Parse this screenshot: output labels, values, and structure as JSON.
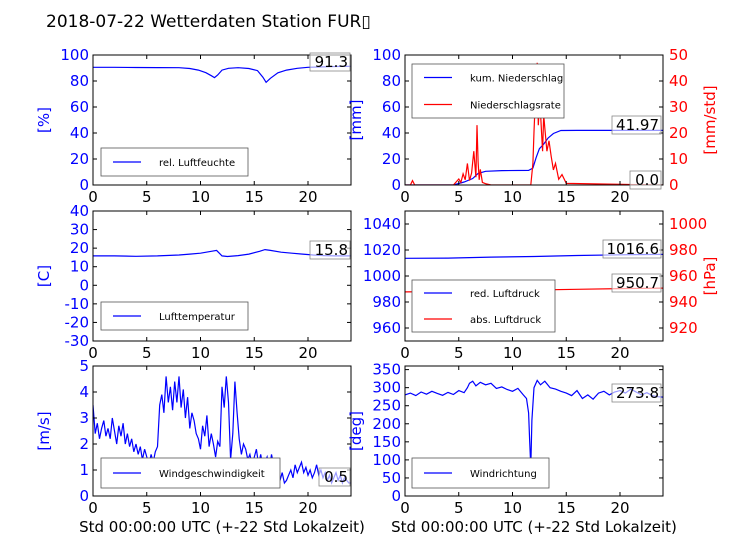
{
  "title": "2018-07-22 Wetterdaten Station FUR▯",
  "colors": {
    "primary": "#0000ff",
    "secondary": "#ff0000",
    "axis": "#000000"
  },
  "chart_data": [
    {
      "id": "humidity",
      "type": "line",
      "xlim": [
        0,
        24
      ],
      "ylim": [
        0,
        100
      ],
      "xticks": [
        0,
        5,
        10,
        15,
        20
      ],
      "yticks": [
        0,
        20,
        40,
        60,
        80,
        100
      ],
      "xlabel": "",
      "ylabel": "[%]",
      "legend": {
        "placement": "lower-left",
        "entries": [
          "rel. Luftfeuchte"
        ]
      },
      "current_value": "91.3",
      "series": [
        {
          "name": "rel. Luftfeuchte",
          "color": "#0000ff",
          "x": [
            0,
            2,
            4,
            6,
            8,
            9,
            9.8,
            10.5,
            11,
            11.3,
            11.6,
            12,
            12.6,
            13.5,
            14.5,
            15.3,
            15.8,
            16.1,
            16.5,
            17.2,
            18,
            19,
            20,
            21,
            22,
            23,
            24
          ],
          "y": [
            90.5,
            90.5,
            90.4,
            90.3,
            90.2,
            89.6,
            88.4,
            86.4,
            84.1,
            82.6,
            84.6,
            88.4,
            89.8,
            90.2,
            89.6,
            88.0,
            82.9,
            79.0,
            82.1,
            86.3,
            88.4,
            89.8,
            90.5,
            90.8,
            91.0,
            91.2,
            91.3
          ]
        }
      ]
    },
    {
      "id": "precipitation",
      "type": "line",
      "xlim": [
        0,
        24
      ],
      "ylim": [
        0,
        100
      ],
      "y2lim": [
        0,
        50
      ],
      "xticks": [
        0,
        5,
        10,
        15,
        20
      ],
      "yticks": [
        0,
        20,
        40,
        60,
        80,
        100
      ],
      "y2ticks": [
        0,
        10,
        20,
        30,
        40,
        50
      ],
      "xlabel": "",
      "ylabel": "[mm]",
      "y2label": "[mm/std]",
      "legend": {
        "placement": "upper-left",
        "entries": [
          "kum. Niederschlag",
          "Niederschlagsrate"
        ]
      },
      "current_value": "41.97",
      "current_value2": "0.0",
      "series": [
        {
          "name": "kum. Niederschlag",
          "color": "#0000ff",
          "axis": "left",
          "x": [
            0,
            4.5,
            5.5,
            6.3,
            6.8,
            7.5,
            9,
            11.5,
            11.9,
            12.2,
            12.5,
            12.9,
            13.3,
            13.8,
            14.5,
            16,
            24
          ],
          "y": [
            0,
            0,
            2.3,
            5,
            8.9,
            10.5,
            11.1,
            11.2,
            13,
            21,
            27.9,
            31.5,
            36.1,
            39.6,
            41.9,
            41.97,
            41.97
          ]
        },
        {
          "name": "Niederschlagsrate",
          "color": "#ff0000",
          "axis": "right",
          "x": [
            0,
            0.5,
            0.7,
            0.9,
            1.2,
            4.5,
            5.0,
            5.2,
            5.4,
            5.6,
            5.8,
            6.0,
            6.2,
            6.4,
            6.6,
            6.7,
            6.8,
            6.9,
            7.0,
            7.2,
            7.5,
            8.0,
            10,
            11.7,
            11.9,
            12.0,
            12.1,
            12.2,
            12.3,
            12.4,
            12.5,
            12.6,
            12.7,
            12.8,
            12.9,
            13.0,
            13.2,
            13.4,
            13.6,
            13.8,
            14.0,
            14.3,
            14.6,
            15.0,
            24
          ],
          "y": [
            0,
            0,
            1.7,
            0,
            0,
            0,
            2.3,
            1.0,
            4.3,
            2.0,
            8.3,
            1.7,
            4.6,
            13.0,
            3.0,
            23.0,
            9.0,
            2.0,
            6.0,
            1.0,
            0.5,
            0,
            0,
            0,
            8.3,
            20.5,
            30.8,
            36.0,
            47.0,
            23.0,
            30.8,
            28.0,
            20.5,
            13.0,
            27.0,
            22.0,
            13.0,
            17.0,
            11.0,
            5.8,
            8.3,
            2.2,
            4.0,
            0.6,
            0
          ]
        }
      ]
    },
    {
      "id": "temperature",
      "type": "line",
      "xlim": [
        0,
        24
      ],
      "ylim": [
        -30,
        40
      ],
      "xticks": [
        0,
        5,
        10,
        15,
        20
      ],
      "yticks": [
        -30,
        -20,
        -10,
        0,
        10,
        20,
        30,
        40
      ],
      "xlabel": "",
      "ylabel": "[C]",
      "legend": {
        "placement": "lower-left",
        "entries": [
          "Lufttemperatur"
        ]
      },
      "current_value": "15.8",
      "series": [
        {
          "name": "Lufttemperatur",
          "color": "#0000ff",
          "x": [
            0,
            2,
            4,
            6,
            8,
            9,
            10,
            11,
            11.5,
            12,
            12.5,
            13.5,
            14.5,
            15.5,
            16,
            16.5,
            17.5,
            18.5,
            19.5,
            20.5,
            21.5,
            22.5,
            24
          ],
          "y": [
            15.8,
            15.8,
            15.6,
            15.8,
            16.3,
            16.8,
            17.3,
            18.3,
            18.8,
            15.8,
            15.5,
            16.0,
            16.8,
            18.3,
            19.2,
            18.8,
            17.8,
            17.3,
            16.8,
            16.3,
            16.0,
            15.8,
            15.8
          ]
        }
      ]
    },
    {
      "id": "pressure",
      "type": "line",
      "xlim": [
        0,
        24
      ],
      "ylim": [
        950,
        1050
      ],
      "y2lim": [
        910,
        1010
      ],
      "xticks": [
        0,
        5,
        10,
        15,
        20
      ],
      "yticks": [
        960,
        980,
        1000,
        1020,
        1040
      ],
      "y2ticks": [
        920,
        940,
        960,
        980,
        1000
      ],
      "xlabel": "",
      "ylabel": "",
      "y2label": "[hPa]",
      "legend": {
        "placement": "lower-left",
        "entries": [
          "red. Luftdruck",
          "abs. Luftdruck"
        ]
      },
      "current_value": "1016.6",
      "current_value2": "950.7",
      "series": [
        {
          "name": "red. Luftdruck",
          "color": "#0000ff",
          "axis": "left",
          "x": [
            0,
            4,
            8,
            12,
            16,
            20,
            24
          ],
          "y": [
            1013.6,
            1013.8,
            1014.5,
            1015.0,
            1015.8,
            1016.3,
            1016.6
          ]
        },
        {
          "name": "abs. Luftdruck",
          "color": "#ff0000",
          "axis": "right",
          "x": [
            0,
            4,
            8,
            12,
            16,
            20,
            24
          ],
          "y": [
            947.8,
            948.0,
            948.6,
            949.2,
            949.8,
            950.3,
            950.7
          ]
        }
      ]
    },
    {
      "id": "wind-speed",
      "type": "line",
      "xlim": [
        0,
        24
      ],
      "ylim": [
        0,
        5
      ],
      "xticks": [
        0,
        5,
        10,
        15,
        20
      ],
      "yticks": [
        0,
        1,
        2,
        3,
        4,
        5
      ],
      "xlabel": "Std 00:00:00 UTC (+-22 Std Lokalzeit)",
      "ylabel": "[m/s]",
      "legend": {
        "placement": "lower-left",
        "entries": [
          "Windgeschwindigkeit"
        ]
      },
      "current_value": "0.5",
      "series": [
        {
          "name": "Windgeschwindigkeit",
          "color": "#0000ff",
          "x": [
            0,
            0.2,
            0.4,
            0.6,
            0.8,
            1.0,
            1.2,
            1.4,
            1.6,
            1.8,
            2.0,
            2.2,
            2.4,
            2.6,
            2.8,
            3.0,
            3.2,
            3.4,
            3.6,
            3.8,
            4.0,
            4.2,
            4.4,
            4.6,
            4.8,
            5.0,
            5.2,
            5.4,
            5.6,
            5.8,
            6.0,
            6.2,
            6.4,
            6.6,
            6.8,
            7.0,
            7.2,
            7.4,
            7.6,
            7.8,
            8.0,
            8.2,
            8.4,
            8.6,
            8.8,
            9.0,
            9.2,
            9.4,
            9.6,
            9.8,
            10.0,
            10.2,
            10.4,
            10.6,
            10.8,
            11.0,
            11.2,
            11.4,
            11.6,
            11.8,
            12.0,
            12.2,
            12.4,
            12.6,
            12.8,
            13.0,
            13.2,
            13.4,
            13.6,
            13.8,
            14.0,
            14.2,
            14.4,
            14.6,
            14.8,
            15.0,
            15.2,
            15.4,
            15.6,
            15.8,
            16.0,
            16.2,
            16.4,
            16.6,
            16.8,
            17.0,
            17.2,
            17.4,
            17.6,
            17.8,
            18.0,
            18.2,
            18.4,
            18.6,
            18.8,
            19.0,
            19.2,
            19.4,
            19.6,
            19.8,
            20.0,
            20.2,
            20.4,
            20.6,
            20.8,
            21.0,
            21.2,
            21.4,
            21.6,
            21.8,
            22.0,
            22.2,
            22.4,
            22.6,
            22.8,
            23.0,
            23.2,
            23.4,
            23.6,
            23.8,
            24.0
          ],
          "y": [
            3.5,
            2.4,
            2.8,
            2.2,
            2.6,
            2.9,
            2.3,
            2.6,
            2.2,
            3.0,
            2.5,
            2.0,
            2.7,
            2.3,
            2.8,
            2.0,
            2.4,
            1.9,
            2.2,
            1.7,
            2.0,
            1.6,
            1.9,
            1.4,
            1.8,
            1.5,
            1.2,
            1.6,
            1.3,
            1.7,
            1.9,
            3.5,
            3.9,
            3.2,
            4.6,
            3.6,
            4.2,
            3.3,
            4.4,
            3.6,
            4.6,
            3.4,
            4.1,
            3.0,
            3.8,
            2.6,
            3.2,
            2.9,
            2.4,
            2.2,
            1.8,
            2.7,
            2.3,
            3.1,
            1.9,
            2.4,
            2.0,
            1.5,
            2.1,
            1.9,
            4.2,
            3.4,
            4.6,
            3.6,
            1.4,
            2.4,
            4.4,
            3.2,
            2.2,
            1.6,
            2.0,
            1.8,
            1.4,
            1.6,
            1.2,
            1.5,
            1.8,
            1.2,
            1.6,
            1.1,
            1.3,
            1.5,
            1.0,
            1.6,
            1.2,
            0.8,
            1.1,
            0.6,
            0.9,
            0.5,
            0.6,
            0.8,
            1.0,
            0.7,
            1.2,
            0.9,
            1.1,
            1.3,
            0.9,
            1.1,
            0.8,
            1.0,
            0.7,
            0.9,
            1.2,
            0.8,
            1.0,
            0.7,
            0.9,
            0.6,
            0.8,
            0.5,
            0.7,
            0.9,
            0.6,
            0.8,
            0.5,
            0.7,
            0.6,
            0.5,
            0.5
          ]
        }
      ]
    },
    {
      "id": "wind-direction",
      "type": "line",
      "xlim": [
        0,
        24
      ],
      "ylim": [
        0,
        360
      ],
      "xticks": [
        0,
        5,
        10,
        15,
        20
      ],
      "yticks": [
        0,
        50,
        100,
        150,
        200,
        250,
        300,
        350
      ],
      "xlabel": "Std 00:00:00 UTC (+-22 Std Lokalzeit)",
      "ylabel": "[deg]",
      "legend": {
        "placement": "lower-left",
        "entries": [
          "Windrichtung"
        ]
      },
      "current_value": "273.8",
      "series": [
        {
          "name": "Windrichtung",
          "color": "#0000ff",
          "x": [
            0,
            0.5,
            1.0,
            1.5,
            2.0,
            2.5,
            3.0,
            3.5,
            4.0,
            4.5,
            5.0,
            5.5,
            5.8,
            6.0,
            6.3,
            6.6,
            7.0,
            7.5,
            8.0,
            8.5,
            9.0,
            9.5,
            10.0,
            10.5,
            11.0,
            11.3,
            11.5,
            11.6,
            11.7,
            11.8,
            12.0,
            12.3,
            12.6,
            13.0,
            13.5,
            14.0,
            14.5,
            15.0,
            15.5,
            16.0,
            16.5,
            17.0,
            17.5,
            18.0,
            18.5,
            19.0,
            19.5,
            20.0,
            20.5,
            21.0,
            21.5,
            22.0,
            22.5,
            23.0,
            23.5,
            24.0
          ],
          "y": [
            280,
            285,
            278,
            288,
            282,
            290,
            284,
            279,
            287,
            281,
            292,
            286,
            300,
            312,
            318,
            305,
            315,
            308,
            312,
            298,
            302,
            295,
            290,
            298,
            280,
            270,
            230,
            150,
            80,
            210,
            300,
            320,
            308,
            318,
            300,
            296,
            290,
            285,
            278,
            292,
            270,
            280,
            268,
            285,
            290,
            280,
            288,
            292,
            285,
            296,
            288,
            280,
            286,
            278,
            275,
            274
          ]
        }
      ]
    }
  ]
}
